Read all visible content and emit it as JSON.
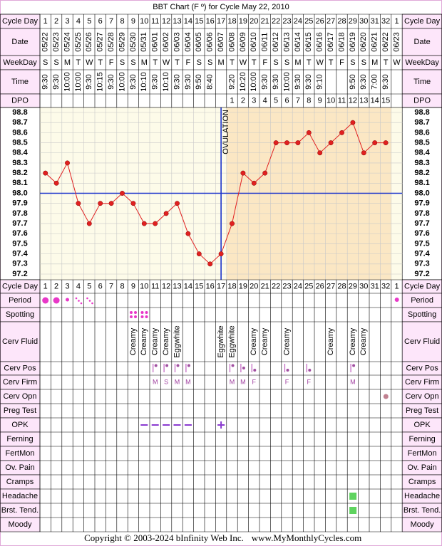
{
  "title": "BBT Chart (F º) for Cycle May 22, 2010",
  "copyright": "Copyright © 2003-2024 bInfinity Web Inc.",
  "website": "www.MyMonthlyCycles.com",
  "header_labels": {
    "cycle_day": "Cycle Day",
    "date": "Date",
    "weekday": "WeekDay",
    "time": "Time",
    "dpo": "DPO"
  },
  "chart_data": {
    "type": "line",
    "categories": [
      "05/22",
      "05/23",
      "05/24",
      "05/25",
      "05/26",
      "05/27",
      "05/28",
      "05/29",
      "05/30",
      "05/31",
      "06/01",
      "06/02",
      "06/03",
      "06/04",
      "06/05",
      "06/06",
      "06/07",
      "06/08",
      "06/09",
      "06/10",
      "06/11",
      "06/12",
      "06/13",
      "06/14",
      "06/15",
      "06/16",
      "06/17",
      "06/18",
      "06/19",
      "06/20",
      "06/21",
      "06/22",
      "06/23"
    ],
    "cycle_days": [
      1,
      2,
      3,
      4,
      5,
      6,
      7,
      8,
      9,
      10,
      11,
      12,
      13,
      14,
      15,
      16,
      17,
      18,
      19,
      20,
      21,
      22,
      23,
      24,
      25,
      26,
      27,
      28,
      29,
      30,
      31,
      32,
      1
    ],
    "weekdays": [
      "S",
      "S",
      "M",
      "T",
      "W",
      "T",
      "F",
      "S",
      "S",
      "M",
      "T",
      "W",
      "T",
      "F",
      "S",
      "S",
      "M",
      "T",
      "W",
      "T",
      "F",
      "S",
      "S",
      "M",
      "T",
      "W",
      "T",
      "F",
      "S",
      "S",
      "M",
      "T",
      "W"
    ],
    "times": [
      "9:30",
      "9:30",
      "10:00",
      "10:00",
      "9:30",
      "10:15",
      "9:30",
      "10:00",
      "9:30",
      "10:10",
      "9:30",
      "10:10",
      "9:30",
      "9:30",
      "9:50",
      "8:40",
      null,
      "9:20",
      "10:20",
      "10:00",
      "9:30",
      "9:30",
      "10:00",
      "9:30",
      "9:30",
      "9:10",
      null,
      null,
      "9:50",
      "9:30",
      "7:00",
      "9:30",
      null
    ],
    "dpo": [
      null,
      null,
      null,
      null,
      null,
      null,
      null,
      null,
      null,
      null,
      null,
      null,
      null,
      null,
      null,
      null,
      null,
      1,
      2,
      3,
      4,
      5,
      6,
      7,
      8,
      9,
      10,
      11,
      12,
      13,
      14,
      15,
      null
    ],
    "values": [
      98.2,
      98.1,
      98.3,
      97.9,
      97.7,
      97.9,
      97.9,
      98.0,
      97.9,
      97.7,
      97.7,
      97.8,
      97.9,
      97.6,
      97.4,
      97.3,
      97.4,
      97.7,
      98.2,
      98.1,
      98.2,
      98.5,
      98.5,
      98.5,
      98.6,
      98.4,
      98.5,
      98.6,
      98.7,
      98.4,
      98.5,
      98.5,
      null
    ],
    "color": "#e02020",
    "ylim": [
      97.2,
      98.8
    ],
    "yticks": [
      98.8,
      98.7,
      98.6,
      98.5,
      98.4,
      98.3,
      98.2,
      98.1,
      {
        "value": 98,
        "label": "98.0"
      },
      97.9,
      97.8,
      97.7,
      97.6,
      97.5,
      97.4,
      97.3,
      97.2
    ],
    "grid": true,
    "coverline": 98,
    "ovulation_day": 17,
    "ovulation_label": "OVULATION"
  },
  "tracking": {
    "rows": [
      {
        "label": "Cycle Day"
      },
      {
        "label": "Period"
      },
      {
        "label": "Spotting"
      },
      {
        "label": "Cerv Fluid",
        "entries": [
          null,
          null,
          null,
          null,
          null,
          null,
          null,
          null,
          "Creamy",
          "Creamy",
          "Creamy",
          "Creamy",
          "Eggwhite",
          null,
          null,
          null,
          "Eggwhite",
          "Eggwhite",
          null,
          "Creamy",
          "Creamy",
          null,
          "Creamy",
          null,
          null,
          null,
          "Creamy",
          null,
          "Creamy",
          "Creamy",
          null,
          null,
          null
        ]
      },
      {
        "label": "Cerv Pos"
      },
      {
        "label": "Cerv Firm",
        "entries": [
          null,
          null,
          null,
          null,
          null,
          null,
          null,
          null,
          null,
          null,
          "M",
          "S",
          "M",
          "M",
          null,
          null,
          null,
          "M",
          "M",
          "F",
          null,
          null,
          "F",
          null,
          "F",
          null,
          null,
          null,
          "M",
          null,
          null,
          null,
          null
        ]
      },
      {
        "label": "Cerv Opn"
      },
      {
        "label": "Preg Test"
      },
      {
        "label": "OPK"
      },
      {
        "label": "Ferning"
      },
      {
        "label": "FertMon"
      },
      {
        "label": "Ov. Pain"
      },
      {
        "label": "Cramps"
      },
      {
        "label": "Headache"
      },
      {
        "label": "Brst. Tend."
      },
      {
        "label": "Moody"
      }
    ]
  }
}
